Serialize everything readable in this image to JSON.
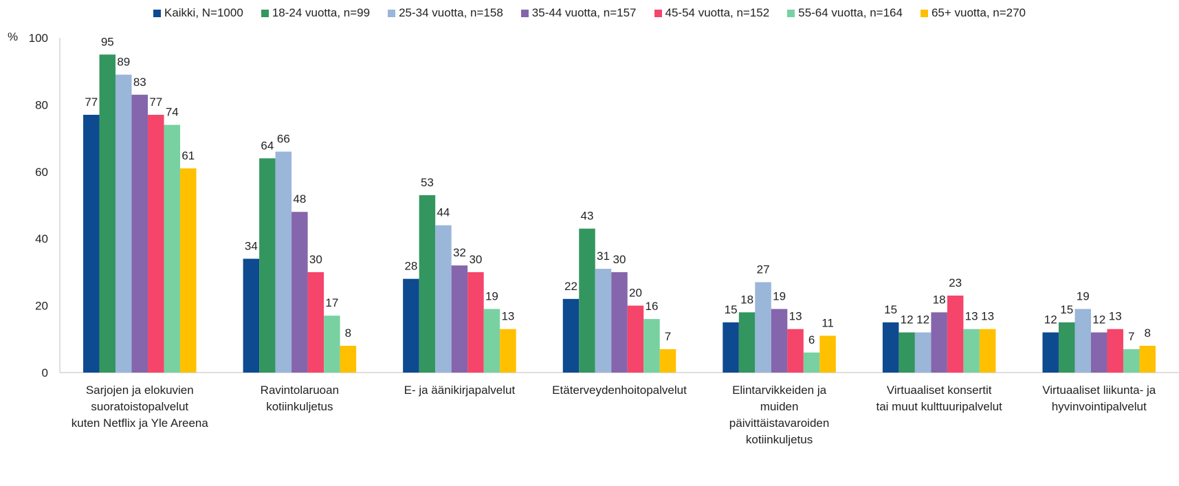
{
  "chart_data": {
    "type": "bar",
    "title": "",
    "xlabel": "",
    "ylabel": "%",
    "ylim": [
      0,
      100
    ],
    "yticks": [
      "0",
      "20",
      "40",
      "60",
      "80",
      "100"
    ],
    "grid": false,
    "legend_position": "top",
    "categories": [
      [
        "Sarjojen ja elokuvien",
        "suoratoistopalvelut",
        "kuten Netflix ja Yle Areena"
      ],
      [
        "Ravintolaruoan",
        "kotiinkuljetus"
      ],
      [
        "E- ja äänikirjapalvelut"
      ],
      [
        "Etäterveydenhoitopalvelut"
      ],
      [
        "Elintarvikkeiden ja",
        "muiden",
        "päivittäistavaroiden",
        "kotiinkuljetus"
      ],
      [
        "Virtuaaliset konsertit",
        "tai muut kulttuuripalvelut"
      ],
      [
        "Virtuaaliset liikunta- ja",
        "hyvinvointipalvelut"
      ]
    ],
    "series": [
      {
        "name": "Kaikki, N=1000",
        "color": "#0d4a8f",
        "values": [
          77,
          34,
          28,
          22,
          15,
          15,
          12
        ]
      },
      {
        "name": "18-24 vuotta, n=99",
        "color": "#34965f",
        "values": [
          95,
          64,
          53,
          43,
          18,
          12,
          15
        ]
      },
      {
        "name": "25-34 vuotta, n=158",
        "color": "#9ab6d9",
        "values": [
          89,
          66,
          44,
          31,
          27,
          12,
          19
        ]
      },
      {
        "name": "35-44 vuotta, n=157",
        "color": "#8565ab",
        "values": [
          83,
          48,
          32,
          30,
          19,
          18,
          12
        ]
      },
      {
        "name": "45-54 vuotta, n=152",
        "color": "#f5456a",
        "values": [
          77,
          30,
          30,
          20,
          13,
          23,
          13
        ]
      },
      {
        "name": "55-64 vuotta, n=164",
        "color": "#79d1a2",
        "values": [
          74,
          17,
          19,
          16,
          6,
          13,
          7
        ]
      },
      {
        "name": "65+ vuotta, n=270",
        "color": "#ffc000",
        "values": [
          61,
          8,
          13,
          7,
          11,
          13,
          8
        ]
      }
    ]
  }
}
